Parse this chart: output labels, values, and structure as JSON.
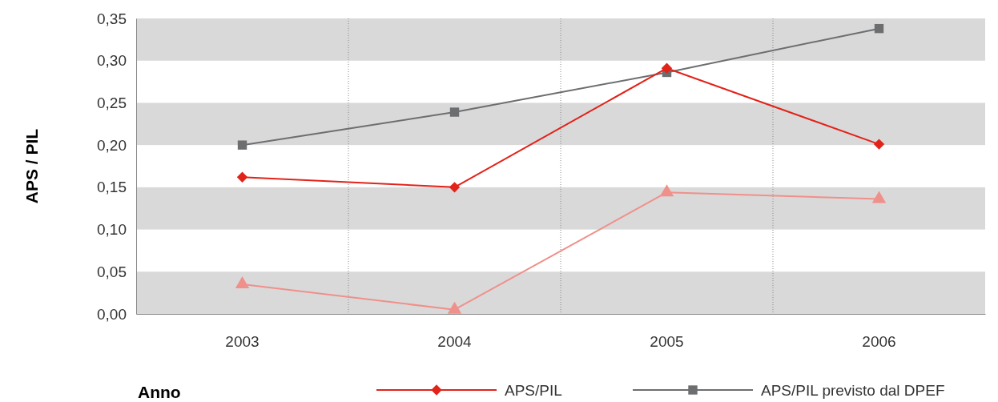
{
  "chart_data": {
    "type": "line",
    "xlabel": "Anno",
    "ylabel": "APS / PIL",
    "categories": [
      "2003",
      "2004",
      "2005",
      "2006"
    ],
    "series": [
      {
        "name": "APS/PIL",
        "color": "#e2231a",
        "marker": "diamond",
        "values": [
          0.162,
          0.15,
          0.291,
          0.201
        ]
      },
      {
        "name": "APS/PIL previsto dal DPEF",
        "color": "#6d6e70",
        "marker": "square",
        "values": [
          0.2,
          0.239,
          0.286,
          0.338
        ]
      },
      {
        "color": "#f0908a",
        "marker": "triangle",
        "values": [
          0.035,
          0.005,
          0.144,
          0.136
        ]
      }
    ],
    "ylim": [
      0,
      0.35
    ],
    "yticks": [
      {
        "value": 0,
        "label": "0,00"
      },
      {
        "value": 0.05,
        "label": "0,05"
      },
      {
        "value": 0.1,
        "label": "0,10"
      },
      {
        "value": 0.15,
        "label": "0,15"
      },
      {
        "value": 0.2,
        "label": "0,20"
      },
      {
        "value": 0.25,
        "label": "0,25"
      },
      {
        "value": 0.3,
        "label": "0,30"
      },
      {
        "value": 0.35,
        "label": "0,35"
      }
    ],
    "bands": [
      {
        "axis": "y",
        "from": 0,
        "to": 0.05,
        "color": "#d9d9da"
      },
      {
        "axis": "y",
        "from": 0.1,
        "to": 0.15,
        "color": "#d9d9da"
      },
      {
        "axis": "y",
        "from": 0.2,
        "to": 0.25,
        "color": "#d9d9da"
      },
      {
        "axis": "y",
        "from": 0.3,
        "to": 0.35,
        "color": "#d9d9da"
      }
    ],
    "grid": "x",
    "legend": "bottom"
  }
}
